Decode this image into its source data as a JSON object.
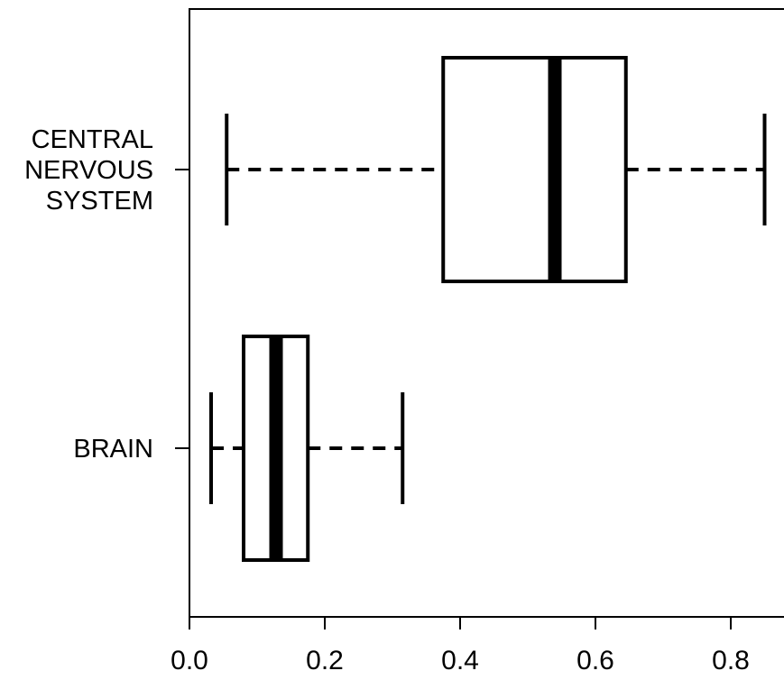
{
  "chart_data": {
    "type": "boxplot",
    "orientation": "horizontal",
    "title": "",
    "xlabel": "",
    "ylabel": "",
    "xlim": [
      0.0,
      0.88
    ],
    "x_ticks": [
      "0.0",
      "0.2",
      "0.4",
      "0.6",
      "0.8"
    ],
    "x_tick_values": [
      0.0,
      0.2,
      0.4,
      0.6,
      0.8
    ],
    "grid": false,
    "categories": [
      {
        "label_lines": [
          "CENTRAL",
          "NERVOUS",
          "SYSTEM"
        ],
        "whisker_low": 0.055,
        "q1": 0.375,
        "median": 0.54,
        "q3": 0.645,
        "whisker_high": 0.85
      },
      {
        "label_lines": [
          "BRAIN"
        ],
        "whisker_low": 0.032,
        "q1": 0.08,
        "median": 0.128,
        "q3": 0.175,
        "whisker_high": 0.315
      }
    ]
  }
}
